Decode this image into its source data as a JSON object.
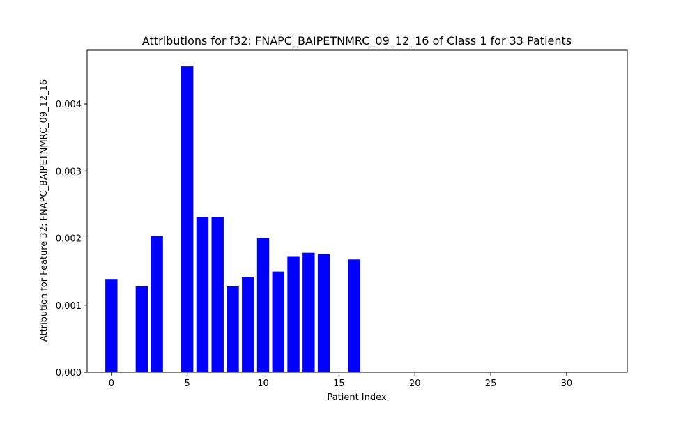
{
  "chart_data": {
    "type": "bar",
    "title": "Attributions for f32: FNAPC_BAIPETNMRC_09_12_16 of Class 1 for 33 Patients",
    "xlabel": "Patient Index",
    "ylabel": "Attribution for Feature 32: FNAPC_BAIPETNMRC_09_12_16",
    "x": [
      0,
      1,
      2,
      3,
      4,
      5,
      6,
      7,
      8,
      9,
      10,
      11,
      12,
      13,
      14,
      15,
      16,
      17,
      18,
      19,
      20,
      21,
      22,
      23,
      24,
      25,
      26,
      27,
      28,
      29,
      30,
      31,
      32
    ],
    "values": [
      0.00139,
      0,
      0.00128,
      0.00203,
      0,
      0.00456,
      0.00231,
      0.00231,
      0.00128,
      0.00142,
      0.002,
      0.0015,
      0.00173,
      0.00178,
      0.00176,
      0,
      0.00168,
      0,
      0,
      0,
      0,
      0,
      0,
      0,
      0,
      0,
      0,
      0,
      0,
      0,
      0,
      0,
      0
    ],
    "bar_color": "#0000ff",
    "xlim": [
      -1.6,
      34.0
    ],
    "ylim": [
      0,
      0.0048
    ],
    "xticks": [
      0,
      5,
      10,
      15,
      20,
      25,
      30
    ],
    "xtick_labels": [
      "0",
      "5",
      "10",
      "15",
      "20",
      "25",
      "30"
    ],
    "yticks": [
      0,
      0.001,
      0.002,
      0.003,
      0.004
    ],
    "ytick_labels": [
      "0.000",
      "0.001",
      "0.002",
      "0.003",
      "0.004"
    ],
    "grid": false,
    "legend": "none"
  }
}
